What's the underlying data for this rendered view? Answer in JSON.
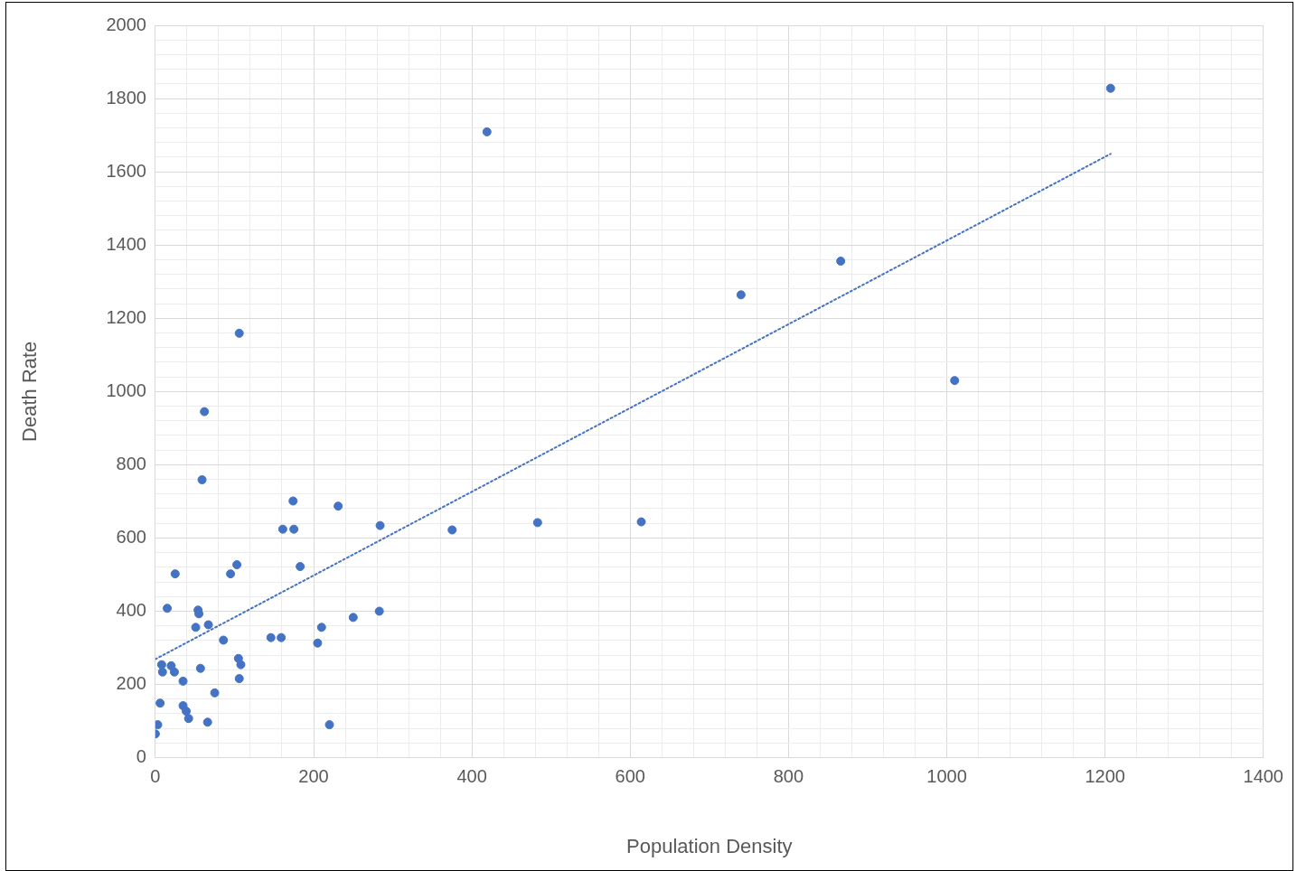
{
  "chart_data": {
    "type": "scatter",
    "xlabel": "Population Density",
    "ylabel": "Death Rate",
    "xlim": [
      0,
      1400
    ],
    "ylim": [
      0,
      2000
    ],
    "xticks": [
      0,
      {
        "value": 40,
        "label": null
      },
      {
        "value": 80,
        "label": null
      },
      {
        "value": 120,
        "label": null
      },
      {
        "value": 160,
        "label": null
      },
      200,
      {
        "value": 240,
        "label": null
      },
      {
        "value": 280,
        "label": null
      },
      {
        "value": 320,
        "label": null
      },
      {
        "value": 360,
        "label": null
      },
      400,
      {
        "value": 440,
        "label": null
      },
      {
        "value": 480,
        "label": null
      },
      {
        "value": 520,
        "label": null
      },
      {
        "value": 560,
        "label": null
      },
      600,
      {
        "value": 640,
        "label": null
      },
      {
        "value": 680,
        "label": null
      },
      {
        "value": 720,
        "label": null
      },
      {
        "value": 760,
        "label": null
      },
      800,
      {
        "value": 840,
        "label": null
      },
      {
        "value": 880,
        "label": null
      },
      {
        "value": 920,
        "label": null
      },
      {
        "value": 960,
        "label": null
      },
      1000,
      {
        "value": 1040,
        "label": null
      },
      {
        "value": 1080,
        "label": null
      },
      {
        "value": 1120,
        "label": null
      },
      {
        "value": 1160,
        "label": null
      },
      1200,
      {
        "value": 1240,
        "label": null
      },
      {
        "value": 1280,
        "label": null
      },
      {
        "value": 1320,
        "label": null
      },
      {
        "value": 1360,
        "label": null
      },
      1400
    ],
    "yticks": [
      0,
      {
        "value": 40,
        "label": null
      },
      {
        "value": 80,
        "label": null
      },
      {
        "value": 120,
        "label": null
      },
      {
        "value": 160,
        "label": null
      },
      200,
      {
        "value": 240,
        "label": null
      },
      {
        "value": 280,
        "label": null
      },
      {
        "value": 320,
        "label": null
      },
      {
        "value": 360,
        "label": null
      },
      400,
      {
        "value": 440,
        "label": null
      },
      {
        "value": 480,
        "label": null
      },
      {
        "value": 520,
        "label": null
      },
      {
        "value": 560,
        "label": null
      },
      600,
      {
        "value": 640,
        "label": null
      },
      {
        "value": 680,
        "label": null
      },
      {
        "value": 720,
        "label": null
      },
      {
        "value": 760,
        "label": null
      },
      800,
      {
        "value": 840,
        "label": null
      },
      {
        "value": 880,
        "label": null
      },
      {
        "value": 920,
        "label": null
      },
      {
        "value": 960,
        "label": null
      },
      1000,
      {
        "value": 1040,
        "label": null
      },
      {
        "value": 1080,
        "label": null
      },
      {
        "value": 1120,
        "label": null
      },
      {
        "value": 1160,
        "label": null
      },
      1200,
      {
        "value": 1240,
        "label": null
      },
      {
        "value": 1280,
        "label": null
      },
      {
        "value": 1320,
        "label": null
      },
      {
        "value": 1360,
        "label": null
      },
      1400,
      {
        "value": 1440,
        "label": null
      },
      {
        "value": 1480,
        "label": null
      },
      {
        "value": 1520,
        "label": null
      },
      {
        "value": 1560,
        "label": null
      },
      1600,
      {
        "value": 1640,
        "label": null
      },
      {
        "value": 1680,
        "label": null
      },
      {
        "value": 1720,
        "label": null
      },
      {
        "value": 1760,
        "label": null
      },
      1800,
      {
        "value": 1840,
        "label": null
      },
      {
        "value": 1880,
        "label": null
      },
      {
        "value": 1920,
        "label": null
      },
      {
        "value": 1960,
        "label": null
      },
      2000
    ],
    "grid": true,
    "legend": false,
    "marker": "circle",
    "series": [
      {
        "color": "#4472c4",
        "x": [
          0,
          3,
          6,
          9,
          8,
          15,
          20,
          24,
          25,
          35,
          35,
          39,
          42,
          51,
          54,
          55,
          57,
          59,
          62,
          66,
          67,
          75,
          86,
          95,
          103,
          106,
          105,
          108,
          106,
          146,
          159,
          161,
          174,
          175,
          183,
          205,
          210,
          220,
          231,
          250,
          283,
          284,
          375,
          419,
          483,
          614,
          740,
          866,
          1010,
          1207
        ],
        "values": [
          65,
          90,
          149,
          234,
          254,
          408,
          251,
          234,
          502,
          209,
          142,
          127,
          107,
          356,
          403,
          393,
          244,
          759,
          945,
          97,
          363,
          177,
          321,
          502,
          527,
          1159,
          271,
          254,
          216,
          328,
          328,
          624,
          701,
          624,
          522,
          313,
          356,
          90,
          687,
          383,
          400,
          634,
          622,
          1709,
          642,
          644,
          1264,
          1356,
          1030,
          1828
        ]
      },
      {
        "type": "line",
        "color": "#4472c4",
        "line_style": "dotted",
        "marker": "none",
        "x": [
          0,
          1207
        ],
        "values": [
          269,
          1649
        ]
      }
    ]
  }
}
